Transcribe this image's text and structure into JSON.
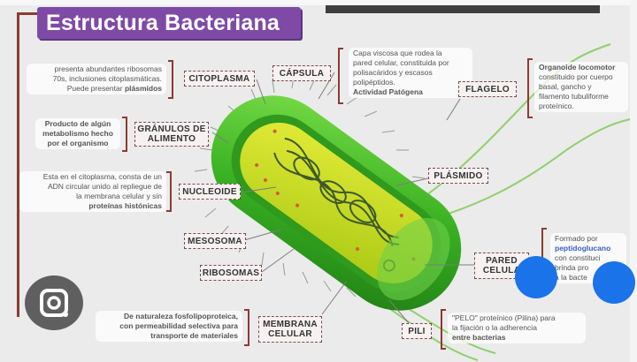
{
  "title": "Estructura Bacteriana",
  "labels": {
    "citoplasma": "CITOPLASMA",
    "capsula": "CÁPSULA",
    "flagelo": "FLAGELO",
    "granulos": "GRÁNULOS DE ALIMENTO",
    "plasmido": "PLÁSMIDO",
    "nucleoide": "NUCLEOIDE",
    "mesosoma": "MESOSOMA",
    "ribosomas": "RIBOSOMAS",
    "pared": "PARED CELULA",
    "membrana": "MEMBRANA CELULAR",
    "pili": "PILI"
  },
  "descriptions": {
    "citoplasma_l1": "presenta abundantes ribosomas",
    "citoplasma_l2": "70s, inclusiones citoplasmáticas.",
    "citoplasma_l3": "Puede presentar",
    "citoplasma_hl": "plásmidos",
    "capsula_l1": "Capa viscosa que rodea la",
    "capsula_l2": "pared celular, constituida por",
    "capsula_l3": "polisacáridos y escasos",
    "capsula_l4": "polipéptidos.",
    "capsula_l5": "Actividad Patógena",
    "flagelo_l1": "Organoide locomotor",
    "flagelo_l2": "constituido por cuerpo",
    "flagelo_l3": "basal, gancho y",
    "flagelo_l4": "filamento tubuliforme",
    "flagelo_l5": "proteínico.",
    "granulos_l1": "Producto de algún",
    "granulos_l2": "metabolismo hecho",
    "granulos_l3": "por el organismo",
    "nucleoide_l1": "Esta en el citoplasma, consta de un",
    "nucleoide_l2": "ADN circular unido al repliegue de",
    "nucleoide_l3": "la membrana celular y sin",
    "nucleoide_l4": "proteínas histónicas",
    "pared_l1": "Formado por",
    "pared_l2": "peptidoglucano",
    "pared_l3": "con constituci",
    "pared_l4": "brinda pro",
    "pared_l5": "a la bacte",
    "membrana_l1": "De naturaleza fosfolipoproteica,",
    "membrana_l2": "con permeabilidad selectiva para",
    "membrana_l3": "transporte de materiales",
    "pili_l1": "\"PELO\" proteínico (Pilina) para",
    "pili_l2": "la fijación o la adherencia",
    "pili_l3": "entre bacterias"
  },
  "icons": [
    "google-lens-icon",
    "blue-marker-icon"
  ],
  "colors": {
    "title_bg": "#7e4aa6",
    "bracket": "#8e3a33",
    "cell_outer": "#3db02a",
    "cell_inner": "#c8df1c"
  }
}
